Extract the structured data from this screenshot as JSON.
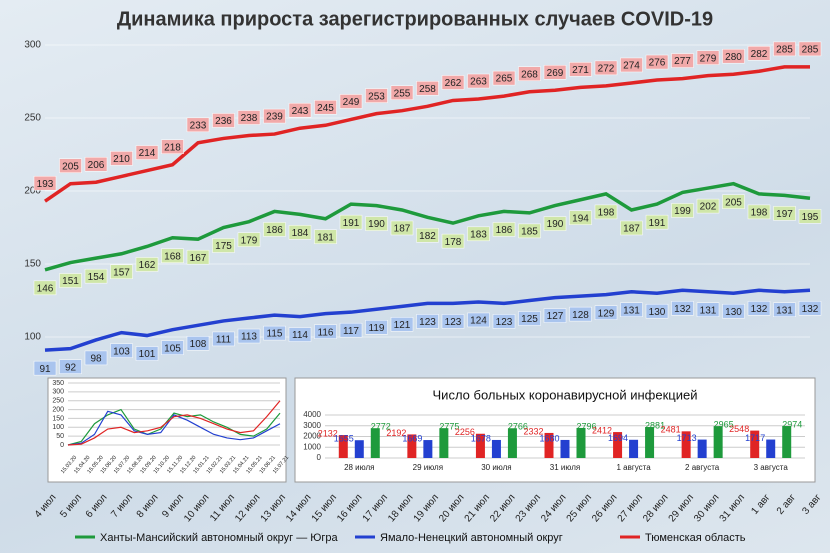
{
  "chart_data": [
    {
      "type": "line",
      "title": "Динамика прироста зарегистрированных случаев COVID-19",
      "categories": [
        "4 июл",
        "5 июл",
        "6 июл",
        "7 июл",
        "8 июл",
        "9 июл",
        "10 июл",
        "11 июл",
        "12 июл",
        "13 июл",
        "14 июл",
        "15 июл",
        "16 июл",
        "17 июл",
        "18 июл",
        "19 июл",
        "20 июл",
        "21 июл",
        "22 июл",
        "23 июл",
        "24 июл",
        "25 июл",
        "26 июл",
        "27 июл",
        "28 июл",
        "29 июл",
        "30 июл",
        "31 июл",
        "1 авг",
        "2 авг",
        "3 авг"
      ],
      "series": [
        {
          "name": "Ханты-Мансийский автономный округ — Югра",
          "color": "#1e9a3c",
          "values": [
            146,
            151,
            154,
            157,
            162,
            168,
            167,
            175,
            179,
            186,
            184,
            181,
            191,
            190,
            187,
            182,
            178,
            183,
            186,
            185,
            190,
            194,
            198,
            187,
            191,
            199,
            202,
            205,
            198,
            197,
            195
          ]
        },
        {
          "name": "Ямало-Ненецкий автономный округ",
          "color": "#2340d0",
          "values": [
            91,
            92,
            98,
            103,
            101,
            105,
            108,
            111,
            113,
            115,
            114,
            116,
            117,
            119,
            121,
            123,
            123,
            124,
            123,
            125,
            127,
            128,
            129,
            131,
            130,
            132,
            131,
            130,
            132,
            131,
            132
          ]
        },
        {
          "name": "Тюменская область",
          "color": "#e02424",
          "values": [
            193,
            205,
            206,
            210,
            214,
            218,
            233,
            236,
            238,
            239,
            243,
            245,
            249,
            253,
            255,
            258,
            262,
            263,
            265,
            268,
            269,
            271,
            272,
            274,
            276,
            277,
            279,
            280,
            282,
            285,
            285
          ]
        }
      ],
      "ylim": [
        0,
        300
      ],
      "yticks": [
        100,
        150,
        200,
        250,
        300
      ],
      "grid": true,
      "legend": "bottom",
      "data_labels": true
    },
    {
      "type": "line",
      "categories": [
        "15.03.20",
        "15.04.20",
        "15.05.20",
        "15.06.20",
        "15.07.20",
        "15.08.20",
        "15.09.20",
        "15.10.20",
        "15.11.20",
        "15.12.20",
        "15.01.21",
        "15.02.21",
        "15.03.21",
        "15.04.21",
        "15.05.21",
        "15.06.21",
        "15.07.21"
      ],
      "series": [
        {
          "color": "#1e9a3c",
          "values": [
            0,
            20,
            120,
            170,
            200,
            90,
            60,
            90,
            180,
            160,
            170,
            130,
            100,
            60,
            50,
            90,
            180
          ]
        },
        {
          "color": "#2340d0",
          "values": [
            0,
            10,
            60,
            190,
            170,
            80,
            60,
            70,
            170,
            140,
            100,
            60,
            40,
            30,
            40,
            80,
            120
          ]
        },
        {
          "color": "#e02424",
          "values": [
            0,
            5,
            40,
            90,
            100,
            70,
            80,
            100,
            160,
            170,
            150,
            120,
            90,
            70,
            80,
            160,
            250
          ]
        }
      ],
      "ylim": [
        0,
        350
      ],
      "yticks": [
        0,
        50,
        100,
        150,
        200,
        250,
        300,
        350
      ],
      "grid": true
    },
    {
      "type": "bar",
      "title": "Число больных коронавирусной  инфекцией",
      "categories": [
        "28 июля",
        "29 июля",
        "30 июля",
        "31 июля",
        "1 августа",
        "2 августа",
        "3 августа"
      ],
      "series": [
        {
          "color": "#e02424",
          "values": [
            2132,
            2192,
            2256,
            2332,
            2412,
            2481,
            2548
          ]
        },
        {
          "color": "#2340d0",
          "values": [
            1655,
            1669,
            1678,
            1680,
            1694,
            1713,
            1717
          ]
        },
        {
          "color": "#1e9a3c",
          "values": [
            2772,
            2775,
            2766,
            2796,
            2881,
            2965,
            2974
          ]
        }
      ],
      "ylim": [
        0,
        4000
      ],
      "yticks": [
        0,
        1000,
        2000,
        3000,
        4000
      ],
      "grid": true,
      "data_labels": true
    }
  ]
}
